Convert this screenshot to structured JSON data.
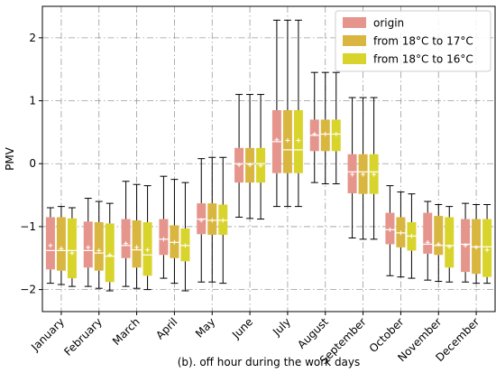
{
  "caption": "(b). off hour during the work days",
  "chart_data": {
    "type": "box",
    "ylabel": "PMV",
    "xlabel": "",
    "ylim": [
      -2.35,
      2.5
    ],
    "yticks": [
      -2,
      -1,
      0,
      1,
      2
    ],
    "grid": true,
    "legend_position": "top-right",
    "categories": [
      "January",
      "February",
      "March",
      "April",
      "May",
      "June",
      "July",
      "August",
      "September",
      "October",
      "November",
      "December"
    ],
    "series": [
      {
        "name": "origin",
        "color": "#e5958b",
        "boxes": [
          {
            "whislo": -1.9,
            "q1": -1.68,
            "med": -1.38,
            "mean": -1.3,
            "q3": -0.85,
            "whishi": -0.7
          },
          {
            "whislo": -1.95,
            "q1": -1.65,
            "med": -1.38,
            "mean": -1.33,
            "q3": -0.92,
            "whishi": -0.55
          },
          {
            "whislo": -1.95,
            "q1": -1.5,
            "med": -1.3,
            "mean": -1.27,
            "q3": -0.88,
            "whishi": -0.28
          },
          {
            "whislo": -1.82,
            "q1": -1.45,
            "med": -1.2,
            "mean": -1.2,
            "q3": -0.88,
            "whishi": -0.2
          },
          {
            "whislo": -1.88,
            "q1": -1.12,
            "med": -0.88,
            "mean": -0.9,
            "q3": -0.63,
            "whishi": 0.08
          },
          {
            "whislo": -0.85,
            "q1": -0.3,
            "med": 0.0,
            "mean": -0.02,
            "q3": 0.25,
            "whishi": 1.1
          },
          {
            "whislo": -0.68,
            "q1": -0.15,
            "med": 0.35,
            "mean": 0.38,
            "q3": 0.85,
            "whishi": 2.28
          },
          {
            "whislo": -0.3,
            "q1": 0.2,
            "med": 0.45,
            "mean": 0.47,
            "q3": 0.7,
            "whishi": 1.45
          },
          {
            "whislo": -1.18,
            "q1": -0.47,
            "med": -0.13,
            "mean": -0.17,
            "q3": 0.15,
            "whishi": 1.05
          },
          {
            "whislo": -1.78,
            "q1": -1.28,
            "med": -1.05,
            "mean": -1.05,
            "q3": -0.78,
            "whishi": -0.35
          },
          {
            "whislo": -1.85,
            "q1": -1.43,
            "med": -1.28,
            "mean": -1.25,
            "q3": -0.78,
            "whishi": -0.6
          },
          {
            "whislo": -1.88,
            "q1": -1.72,
            "med": -1.28,
            "mean": -1.3,
            "q3": -0.88,
            "whishi": -0.63
          }
        ]
      },
      {
        "name": "from 18°C to 17°C",
        "color": "#d9b640",
        "boxes": [
          {
            "whislo": -1.92,
            "q1": -1.7,
            "med": -1.38,
            "mean": -1.35,
            "q3": -0.85,
            "whishi": -0.68
          },
          {
            "whislo": -1.98,
            "q1": -1.7,
            "med": -1.42,
            "mean": -1.38,
            "q3": -0.93,
            "whishi": -0.6
          },
          {
            "whislo": -1.98,
            "q1": -1.65,
            "med": -1.37,
            "mean": -1.33,
            "q3": -0.9,
            "whishi": -0.33
          },
          {
            "whislo": -1.9,
            "q1": -1.5,
            "med": -1.25,
            "mean": -1.25,
            "q3": -0.98,
            "whishi": -0.25
          },
          {
            "whislo": -1.88,
            "q1": -1.13,
            "med": -0.9,
            "mean": -0.9,
            "q3": -0.63,
            "whishi": 0.1
          },
          {
            "whislo": -0.87,
            "q1": -0.3,
            "med": 0.0,
            "mean": -0.02,
            "q3": 0.25,
            "whishi": 1.1
          },
          {
            "whislo": -0.68,
            "q1": -0.15,
            "med": 0.22,
            "mean": 0.37,
            "q3": 0.85,
            "whishi": 2.28
          },
          {
            "whislo": -0.32,
            "q1": 0.2,
            "med": 0.47,
            "mean": 0.47,
            "q3": 0.7,
            "whishi": 1.45
          },
          {
            "whislo": -1.2,
            "q1": -0.48,
            "med": -0.13,
            "mean": -0.17,
            "q3": 0.15,
            "whishi": 1.05
          },
          {
            "whislo": -1.8,
            "q1": -1.33,
            "med": -1.1,
            "mean": -1.1,
            "q3": -0.85,
            "whishi": -0.45
          },
          {
            "whislo": -1.87,
            "q1": -1.45,
            "med": -1.3,
            "mean": -1.28,
            "q3": -0.83,
            "whishi": -0.65
          },
          {
            "whislo": -1.9,
            "q1": -1.75,
            "med": -1.32,
            "mean": -1.33,
            "q3": -0.88,
            "whishi": -0.65
          }
        ]
      },
      {
        "name": "from 18°C to 16°C",
        "color": "#d8d42c",
        "boxes": [
          {
            "whislo": -1.95,
            "q1": -1.82,
            "med": -1.38,
            "mean": -1.42,
            "q3": -0.87,
            "whishi": -0.7
          },
          {
            "whislo": -2.02,
            "q1": -1.88,
            "med": -1.47,
            "mean": -1.45,
            "q3": -0.95,
            "whishi": -0.63
          },
          {
            "whislo": -2.0,
            "q1": -1.78,
            "med": -1.45,
            "mean": -1.37,
            "q3": -0.93,
            "whishi": -0.35
          },
          {
            "whislo": -2.02,
            "q1": -1.55,
            "med": -1.3,
            "mean": -1.3,
            "q3": -1.03,
            "whishi": -0.3
          },
          {
            "whislo": -1.9,
            "q1": -1.13,
            "med": -0.9,
            "mean": -0.9,
            "q3": -0.65,
            "whishi": 0.1
          },
          {
            "whislo": -0.88,
            "q1": -0.3,
            "med": 0.0,
            "mean": -0.03,
            "q3": 0.25,
            "whishi": 1.1
          },
          {
            "whislo": -0.68,
            "q1": -0.15,
            "med": 0.22,
            "mean": 0.37,
            "q3": 0.85,
            "whishi": 2.28
          },
          {
            "whislo": -0.32,
            "q1": 0.2,
            "med": 0.47,
            "mean": 0.47,
            "q3": 0.7,
            "whishi": 1.45
          },
          {
            "whislo": -1.2,
            "q1": -0.48,
            "med": -0.13,
            "mean": -0.17,
            "q3": 0.15,
            "whishi": 1.05
          },
          {
            "whislo": -1.82,
            "q1": -1.38,
            "med": -1.15,
            "mean": -1.15,
            "q3": -0.93,
            "whishi": -0.48
          },
          {
            "whislo": -1.88,
            "q1": -1.65,
            "med": -1.3,
            "mean": -1.32,
            "q3": -0.85,
            "whishi": -0.68
          },
          {
            "whislo": -1.9,
            "q1": -1.8,
            "med": -1.32,
            "mean": -1.37,
            "q3": -0.88,
            "whishi": -0.65
          }
        ]
      }
    ]
  }
}
